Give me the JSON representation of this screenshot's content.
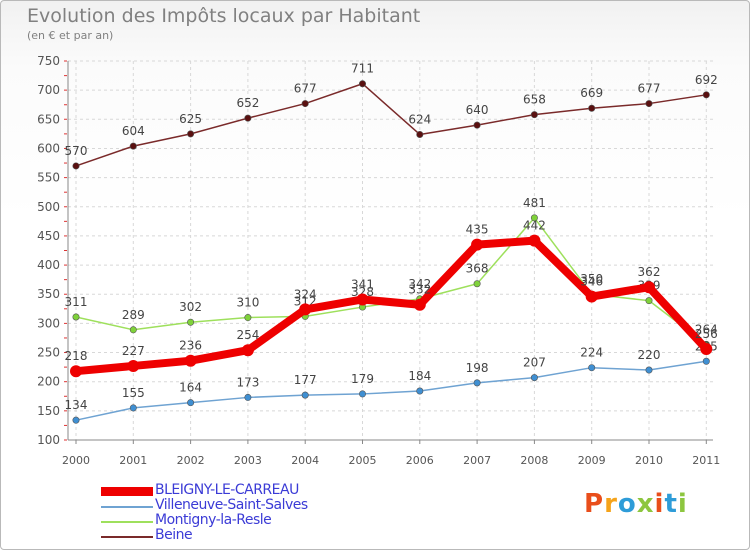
{
  "title": "Evolution des Impôts locaux par Habitant",
  "subtitle": "(en € et par an)",
  "logo": {
    "text": "Proxiti",
    "colors": [
      "#e94e1b",
      "#f5a31a",
      "#2e9cd8",
      "#8dc63f",
      "#e94e1b",
      "#2e9cd8",
      "#8dc63f"
    ]
  },
  "chart_data": {
    "type": "line",
    "title": "Evolution des Impôts locaux par Habitant",
    "ylabel": "(en € et par an)",
    "xlabel": "",
    "ylim": [
      100,
      750
    ],
    "yticks": [
      100,
      150,
      200,
      250,
      300,
      350,
      400,
      450,
      500,
      550,
      600,
      650,
      700,
      750
    ],
    "x": [
      "2000",
      "2001",
      "2002",
      "2003",
      "2004",
      "2005",
      "2006",
      "2007",
      "2008",
      "2009",
      "2010",
      "2011"
    ],
    "series": [
      {
        "name": "BLEIGNY-LE-CARREAU",
        "color": "#ee0000",
        "marker": "#ee0000",
        "values": [
          218,
          227,
          236,
          254,
          324,
          341,
          332,
          435,
          442,
          346,
          362,
          256
        ]
      },
      {
        "name": "Villeneuve-Saint-Salves",
        "color": "#6fa3d2",
        "marker": "#3f8fd2",
        "values": [
          134,
          155,
          164,
          173,
          177,
          179,
          184,
          198,
          207,
          224,
          220,
          235
        ]
      },
      {
        "name": "Montigny-la-Resle",
        "color": "#9ee05c",
        "marker": "#7fd23a",
        "values": [
          311,
          289,
          302,
          310,
          312,
          328,
          342,
          368,
          481,
          350,
          339,
          264
        ]
      },
      {
        "name": "Beine",
        "color": "#7a2a2a",
        "marker": "#5a1010",
        "values": [
          570,
          604,
          625,
          652,
          677,
          711,
          624,
          640,
          658,
          669,
          677,
          692
        ]
      }
    ]
  }
}
